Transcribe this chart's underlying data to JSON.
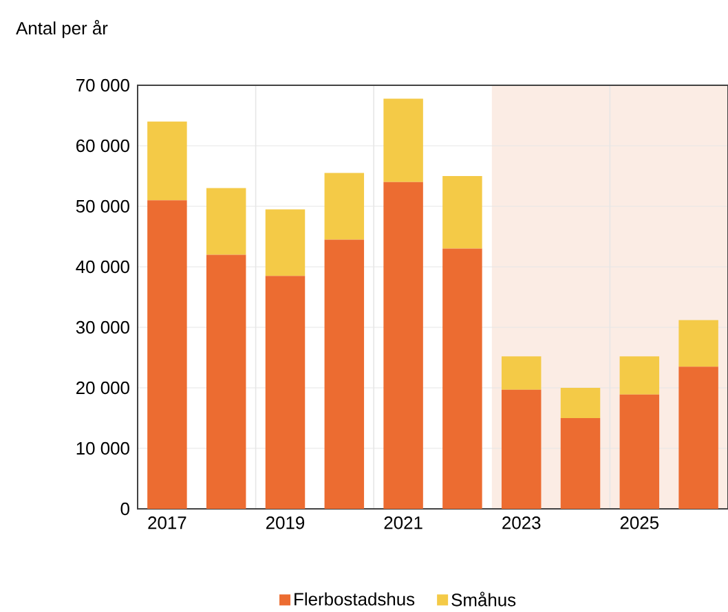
{
  "chart_data": {
    "type": "bar",
    "ylabel": "Antal per år",
    "stacked": true,
    "x": [
      2017,
      2018,
      2019,
      2020,
      2021,
      2022,
      2023,
      2024,
      2025,
      2026
    ],
    "series": [
      {
        "name": "Flerbostadshus",
        "color": "#ec6c31",
        "values": [
          51000,
          42000,
          38500,
          44500,
          54000,
          43000,
          19700,
          15000,
          18900,
          23500
        ]
      },
      {
        "name": "Småhus",
        "color": "#f4ca47",
        "values": [
          13000,
          11000,
          11000,
          11000,
          13800,
          12000,
          5500,
          5000,
          6300,
          7700
        ]
      }
    ],
    "xlim": [
      2016.5,
      2026.5
    ],
    "xticks": [
      2017,
      2019,
      2021,
      2023,
      2025
    ],
    "ylim": [
      0,
      70000
    ],
    "yticks": [
      0,
      {
        "value": 10000,
        "label": "10 000"
      },
      {
        "value": 20000,
        "label": "20 000"
      },
      {
        "value": 30000,
        "label": "30 000"
      },
      {
        "value": 40000,
        "label": "40 000"
      },
      {
        "value": 50000,
        "label": "50 000"
      },
      {
        "value": 60000,
        "label": "60 000"
      },
      {
        "value": 70000,
        "label": "70 000"
      }
    ],
    "grid": "y",
    "legend": "bottom",
    "bands": [
      {
        "axis": "x",
        "from": 2022.5,
        "to": 2026.5,
        "color": "#fbece4"
      }
    ],
    "ref_lines": [
      {
        "axis": "x",
        "value": 2018.5,
        "color": "#e6e6e6"
      },
      {
        "axis": "x",
        "value": 2020.5,
        "color": "#e6e6e6"
      },
      {
        "axis": "x",
        "value": 2024.5,
        "color": "#e6e6e6"
      }
    ]
  }
}
